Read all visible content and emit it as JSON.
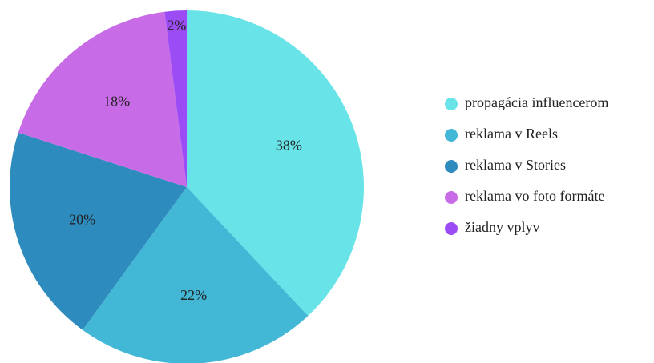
{
  "chart_data": {
    "type": "pie",
    "categories": [
      "propagácia influencerom",
      "reklama v Reels",
      "reklama v Stories",
      "reklama vo foto formáte",
      "žiadny vplyv"
    ],
    "values": [
      38,
      22,
      20,
      18,
      2
    ],
    "value_labels": [
      "38%",
      "22%",
      "20%",
      "18%",
      "2%"
    ],
    "colors": [
      "#68e3e8",
      "#42b8d6",
      "#2e8bbd",
      "#c86be6",
      "#9b4cf5"
    ],
    "legend": "right"
  }
}
